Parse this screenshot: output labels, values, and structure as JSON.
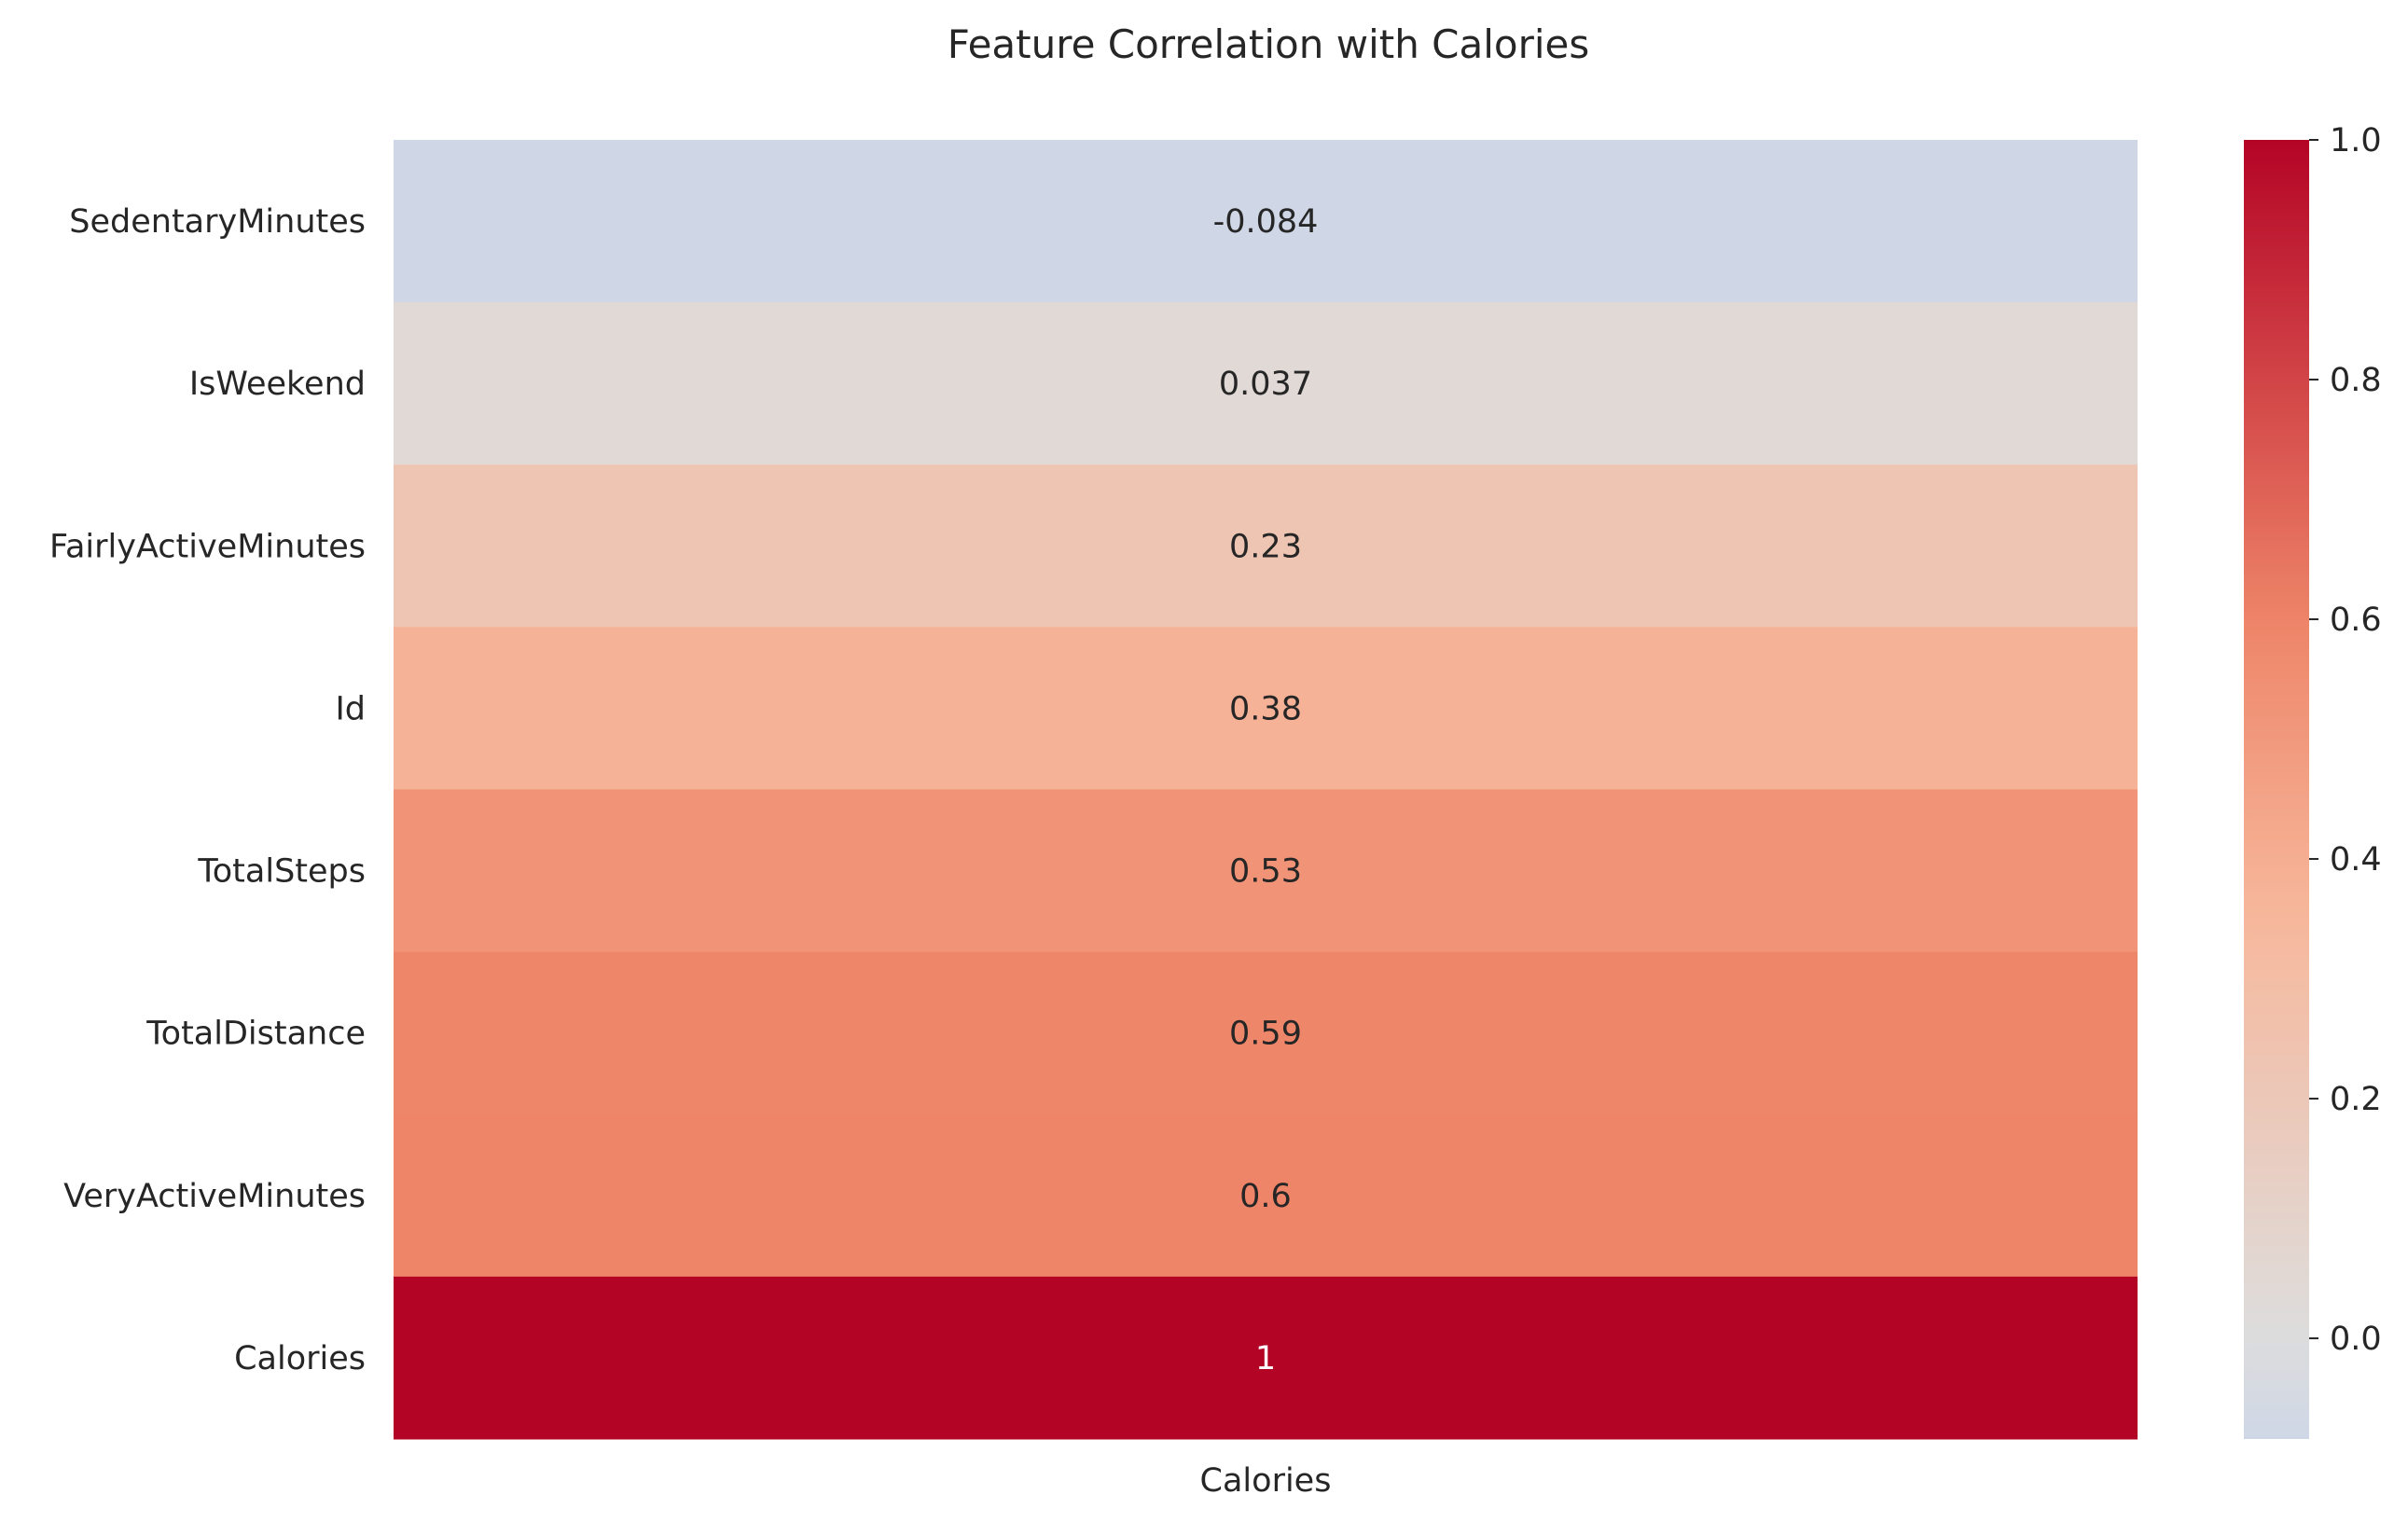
{
  "chart_data": {
    "type": "heatmap",
    "title": "Feature Correlation with Calories",
    "x_categories": [
      "Calories"
    ],
    "y_categories": [
      "SedentaryMinutes",
      "IsWeekend",
      "FairlyActiveMinutes",
      "Id",
      "TotalSteps",
      "TotalDistance",
      "VeryActiveMinutes",
      "Calories"
    ],
    "values": [
      -0.084,
      0.037,
      0.23,
      0.38,
      0.53,
      0.59,
      0.6,
      1
    ],
    "annotations": [
      "-0.084",
      "0.037",
      "0.23",
      "0.38",
      "0.53",
      "0.59",
      "0.6",
      "1"
    ],
    "colormap": "coolwarm",
    "center": 0,
    "vmin": -0.084,
    "vmax": 1,
    "colorbar": {
      "ticks": [
        0.0,
        0.2,
        0.4,
        0.6,
        0.8,
        1.0
      ],
      "tick_labels": [
        "0.0",
        "0.2",
        "0.4",
        "0.6",
        "0.8",
        "1.0"
      ]
    },
    "grid": false,
    "legend": "colorbar-right"
  },
  "colors": {
    "coolwarm_stops": [
      [
        "#3b4cc0",
        -1.0
      ],
      [
        "#7396f5",
        -0.6
      ],
      [
        "#aac7fd",
        -0.3
      ],
      [
        "#dddddd",
        0.0
      ],
      [
        "#f7b89c",
        0.35
      ],
      [
        "#ee8468",
        0.6
      ],
      [
        "#b40426",
        1.0
      ]
    ]
  }
}
